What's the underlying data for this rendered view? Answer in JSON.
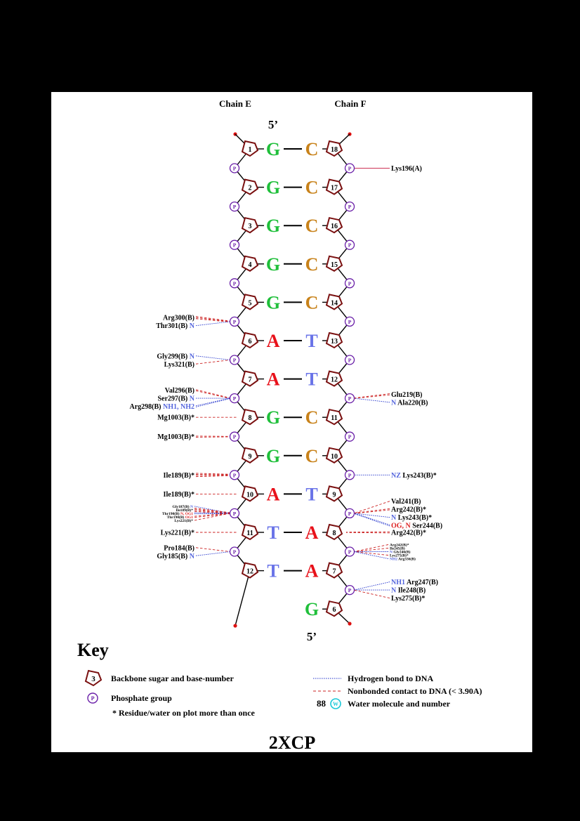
{
  "chain_labels": {
    "left": "Chain E",
    "right": "Chain F"
  },
  "five_prime_top": "5’",
  "five_prime_bottom": "5’",
  "phosphate_letter": "P",
  "colors": {
    "G": "#1fbf3a",
    "C": "#c8821a",
    "A": "#e8111a",
    "T": "#6a74e8",
    "sugar": "#7a1010",
    "phosphate": "#6a1fa8",
    "hbond": "#2233cc",
    "nonbonded": "#cc2222",
    "atom_blue": "#5566dd",
    "atom_red": "#dd2222",
    "end_dot": "#dd1111",
    "water": "#19c8d8"
  },
  "pairs": [
    {
      "left": {
        "num": "1",
        "base": "G"
      },
      "right": {
        "num": "18",
        "base": "C"
      }
    },
    {
      "left": {
        "num": "2",
        "base": "G"
      },
      "right": {
        "num": "17",
        "base": "C"
      }
    },
    {
      "left": {
        "num": "3",
        "base": "G"
      },
      "right": {
        "num": "16",
        "base": "C"
      }
    },
    {
      "left": {
        "num": "4",
        "base": "G"
      },
      "right": {
        "num": "15",
        "base": "C"
      }
    },
    {
      "left": {
        "num": "5",
        "base": "G"
      },
      "right": {
        "num": "14",
        "base": "C"
      }
    },
    {
      "left": {
        "num": "6",
        "base": "A"
      },
      "right": {
        "num": "13",
        "base": "T"
      }
    },
    {
      "left": {
        "num": "7",
        "base": "A"
      },
      "right": {
        "num": "12",
        "base": "T"
      }
    },
    {
      "left": {
        "num": "8",
        "base": "G"
      },
      "right": {
        "num": "11",
        "base": "C"
      }
    },
    {
      "left": {
        "num": "9",
        "base": "G"
      },
      "right": {
        "num": "10",
        "base": "C"
      }
    },
    {
      "left": {
        "num": "10",
        "base": "A"
      },
      "right": {
        "num": "9",
        "base": "T"
      }
    },
    {
      "left": {
        "num": "11",
        "base": "T"
      },
      "right": {
        "num": "8",
        "base": "A"
      }
    },
    {
      "left": {
        "num": "12",
        "base": "T"
      },
      "right": {
        "num": "7",
        "base": "A"
      }
    }
  ],
  "overhang": {
    "num": "6",
    "base": "G"
  },
  "contacts_left": [
    {
      "phosphate": 5,
      "lines": [
        {
          "res": "Arg300(B)",
          "atom": "",
          "type": "nb",
          "count": 3
        },
        {
          "res": "Thr301(B)",
          "atom": "N",
          "type": "hb",
          "count": 1
        }
      ]
    },
    {
      "phosphate": 6,
      "lines": [
        {
          "res": "Gly299(B)",
          "atom": "N",
          "type": "hb",
          "count": 1
        },
        {
          "res": "Lys321(B)",
          "atom": "",
          "type": "nb",
          "count": 1
        }
      ]
    },
    {
      "phosphate": 7,
      "lines": [
        {
          "res": "Val296(B)",
          "atom": "",
          "type": "nb",
          "count": 2
        },
        {
          "res": "Ser297(B)",
          "atom": "N",
          "type": "hb",
          "count": 1
        },
        {
          "res": "Arg298(B)",
          "atom": "NH1, NH2",
          "type": "hb",
          "count": 2
        }
      ]
    },
    {
      "base": 8,
      "lines": [
        {
          "res": "Mg1003(B)*",
          "atom": "",
          "type": "nb",
          "count": 1
        }
      ]
    },
    {
      "phosphate": 8,
      "lines": [
        {
          "res": "Mg1003(B)*",
          "atom": "",
          "type": "nb",
          "count": 2
        }
      ]
    },
    {
      "phosphate": 9,
      "lines": [
        {
          "res": "Ile189(B)*",
          "atom": "",
          "type": "nb",
          "count": 4
        }
      ]
    },
    {
      "base": 10,
      "lines": [
        {
          "res": "Ile189(B)*",
          "atom": "",
          "type": "nb",
          "count": 1
        }
      ]
    },
    {
      "phosphate": 10,
      "small": true,
      "lines": [
        {
          "res": "Gly187(B)",
          "atom": "N",
          "type": "hb",
          "count": 1
        },
        {
          "res": "Ile189(B)*",
          "atom": "",
          "type": "nb",
          "count": 4
        },
        {
          "res": "Thr190(B)",
          "atom": "N, OG1",
          "type": "hb",
          "count": 2
        },
        {
          "res": "Thr190(B)",
          "atom": "OG1",
          "type": "nb",
          "count": 2
        },
        {
          "res": "Lys221(B)*",
          "atom": "",
          "type": "nb",
          "count": 1
        }
      ]
    },
    {
      "base": 11,
      "lines": [
        {
          "res": "Lys221(B)*",
          "atom": "",
          "type": "nb",
          "count": 1
        }
      ]
    },
    {
      "phosphate": 11,
      "lines": [
        {
          "res": "Pro184(B)",
          "atom": "",
          "type": "nb",
          "count": 1
        },
        {
          "res": "Gly185(B)",
          "atom": "N",
          "type": "hb",
          "count": 1
        }
      ]
    }
  ],
  "contacts_right": [
    {
      "phosphate": 1,
      "lines": [
        {
          "res": "Lys196(A)",
          "atom": "",
          "type": "solid",
          "count": 1
        }
      ]
    },
    {
      "phosphate": 7,
      "lines": [
        {
          "res": "Glu219(B)",
          "atom": "",
          "type": "nb",
          "count": 2
        },
        {
          "res": "Ala220(B)",
          "atom": "N",
          "type": "hb",
          "count": 1
        }
      ]
    },
    {
      "phosphate": 9,
      "lines": [
        {
          "res": "Lys243(B)*",
          "atom": "NZ",
          "type": "hb",
          "count": 1
        }
      ]
    },
    {
      "phosphate": 10,
      "lines": [
        {
          "res": "Val241(B)",
          "atom": "",
          "type": "nb",
          "count": 1
        },
        {
          "res": "Arg242(B)*",
          "atom": "",
          "type": "nb",
          "count": 2
        },
        {
          "res": "Lys243(B)*",
          "atom": "N",
          "type": "hb",
          "count": 1
        },
        {
          "res": "Ser244(B)",
          "atom": "OG, N",
          "type": "hb",
          "count": 2
        }
      ]
    },
    {
      "base": 11,
      "lines": [
        {
          "res": "Arg242(B)*",
          "atom": "",
          "type": "nb",
          "count": 2
        }
      ]
    },
    {
      "phosphate": 11,
      "small": true,
      "lines": [
        {
          "res": "Arg242(B)*",
          "atom": "",
          "type": "nb",
          "count": 1
        },
        {
          "res": "Ile245(B)",
          "atom": "",
          "type": "nb",
          "count": 1
        },
        {
          "res": "Gly246(B)",
          "atom": "N",
          "type": "hb",
          "count": 1
        },
        {
          "res": "Lys275(B)*",
          "atom": "",
          "type": "nb",
          "count": 1
        },
        {
          "res": "Arg336(B)",
          "atom": "NH2",
          "type": "hb",
          "count": 1
        }
      ]
    },
    {
      "phosphate": 12,
      "lines": [
        {
          "res": "Arg247(B)",
          "atom": "NH1",
          "type": "hb",
          "count": 1
        },
        {
          "res": "Ile248(B)",
          "atom": "N",
          "type": "hb",
          "count": 1
        },
        {
          "res": "Lys275(B)*",
          "atom": "",
          "type": "nb",
          "count": 1
        }
      ]
    }
  ],
  "key": {
    "title": "Key",
    "sugar_example": "3",
    "sugar_label": "Backbone sugar and base-number",
    "phosphate_label": "Phosphate group",
    "asterisk_label": "* Residue/water on plot more than once",
    "hbond_label": "Hydrogen bond to DNA",
    "nonbonded_label": "Nonbonded contact to DNA (< 3.90A)",
    "water_number": "88",
    "water_letter": "W",
    "water_label": "Water molecule and number"
  },
  "pdb_code": "2XCP"
}
